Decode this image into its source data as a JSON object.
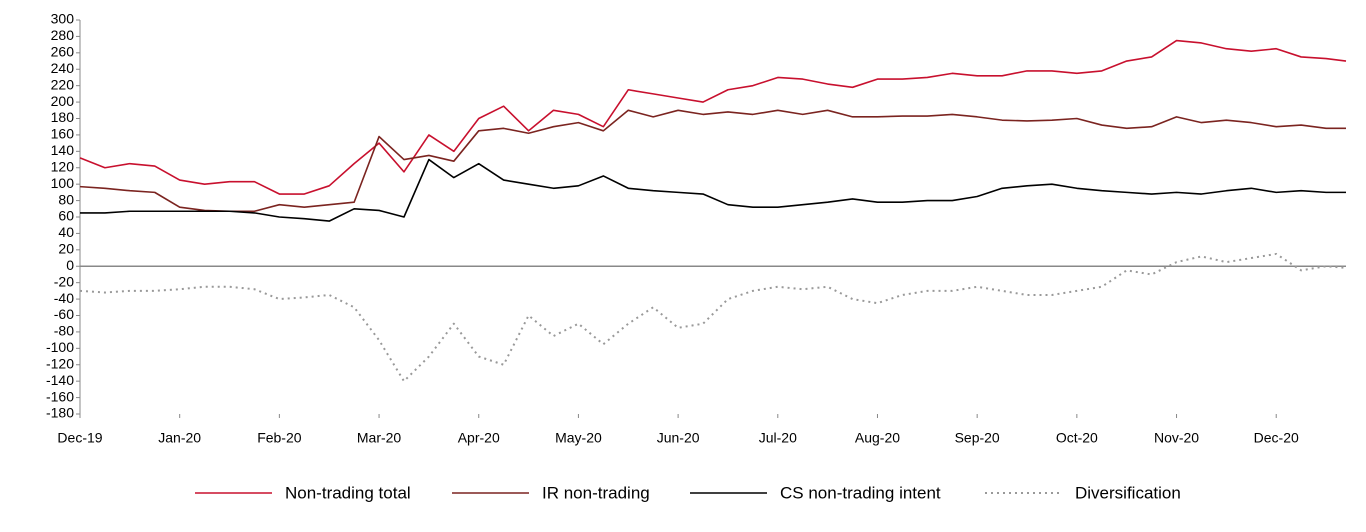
{
  "chart_data": {
    "type": "line",
    "x": [
      0,
      0.25,
      0.5,
      0.75,
      1,
      1.25,
      1.5,
      1.75,
      2,
      2.25,
      2.5,
      2.75,
      3,
      3.25,
      3.5,
      3.75,
      4,
      4.25,
      4.5,
      4.75,
      5,
      5.25,
      5.5,
      5.75,
      6,
      6.25,
      6.5,
      6.75,
      7,
      7.25,
      7.5,
      7.75,
      8,
      8.25,
      8.5,
      8.75,
      9,
      9.25,
      9.5,
      9.75,
      10,
      10.25,
      10.5,
      10.75,
      11,
      11.25,
      11.5,
      11.75,
      12,
      12.25,
      12.5,
      12.7
    ],
    "xlim": [
      0,
      12.7
    ],
    "xticks": [
      {
        "value": 0,
        "label": "Dec-19"
      },
      {
        "value": 1,
        "label": "Jan-20"
      },
      {
        "value": 2,
        "label": "Feb-20"
      },
      {
        "value": 3,
        "label": "Mar-20"
      },
      {
        "value": 4,
        "label": "Apr-20"
      },
      {
        "value": 5,
        "label": "May-20"
      },
      {
        "value": 6,
        "label": "Jun-20"
      },
      {
        "value": 7,
        "label": "Jul-20"
      },
      {
        "value": 8,
        "label": "Aug-20"
      },
      {
        "value": 9,
        "label": "Sep-20"
      },
      {
        "value": 10,
        "label": "Oct-20"
      },
      {
        "value": 11,
        "label": "Nov-20"
      },
      {
        "value": 12,
        "label": "Dec-20"
      }
    ],
    "ylim": [
      -180,
      300
    ],
    "yticks": [
      -180,
      -160,
      -140,
      -120,
      -100,
      -80,
      -60,
      -40,
      -20,
      0,
      20,
      40,
      60,
      80,
      100,
      120,
      140,
      160,
      180,
      200,
      220,
      240,
      260,
      280,
      300
    ],
    "legend": "bottom",
    "series": [
      {
        "name": "Non-trading total",
        "color": "#c8102e",
        "dash": "solid",
        "values": [
          132,
          120,
          125,
          122,
          105,
          100,
          103,
          103,
          88,
          88,
          98,
          125,
          150,
          115,
          160,
          140,
          180,
          195,
          165,
          190,
          185,
          170,
          215,
          210,
          205,
          200,
          215,
          220,
          230,
          228,
          222,
          218,
          228,
          228,
          230,
          235,
          232,
          232,
          238,
          238,
          235,
          238,
          250,
          255,
          275,
          272,
          265,
          262,
          265,
          255,
          253,
          250
        ]
      },
      {
        "name": "IR non-trading",
        "color": "#7b2420",
        "dash": "solid",
        "values": [
          97,
          95,
          92,
          90,
          72,
          68,
          67,
          67,
          75,
          72,
          75,
          78,
          158,
          130,
          135,
          128,
          165,
          168,
          162,
          170,
          175,
          165,
          190,
          182,
          190,
          185,
          188,
          185,
          190,
          185,
          190,
          182,
          182,
          183,
          183,
          185,
          182,
          178,
          177,
          178,
          180,
          172,
          168,
          170,
          182,
          175,
          178,
          175,
          170,
          172,
          168,
          168
        ]
      },
      {
        "name": "CS non-trading intent",
        "color": "#000000",
        "dash": "solid",
        "values": [
          65,
          65,
          67,
          67,
          67,
          67,
          67,
          65,
          60,
          58,
          55,
          70,
          68,
          60,
          130,
          108,
          125,
          105,
          100,
          95,
          98,
          110,
          95,
          92,
          90,
          88,
          75,
          72,
          72,
          75,
          78,
          82,
          78,
          78,
          80,
          80,
          85,
          95,
          98,
          100,
          95,
          92,
          90,
          88,
          90,
          88,
          92,
          95,
          90,
          92,
          90,
          90
        ]
      },
      {
        "name": "Diversification",
        "color": "#999999",
        "dash": "dotted",
        "values": [
          -30,
          -32,
          -30,
          -30,
          -28,
          -25,
          -25,
          -28,
          -40,
          -38,
          -35,
          -50,
          -90,
          -140,
          -110,
          -70,
          -110,
          -120,
          -60,
          -85,
          -70,
          -95,
          -70,
          -50,
          -75,
          -70,
          -40,
          -30,
          -25,
          -28,
          -25,
          -40,
          -45,
          -35,
          -30,
          -30,
          -25,
          -30,
          -35,
          -35,
          -30,
          -25,
          -5,
          -10,
          5,
          12,
          5,
          10,
          15,
          -5,
          0,
          -2
        ]
      }
    ]
  }
}
